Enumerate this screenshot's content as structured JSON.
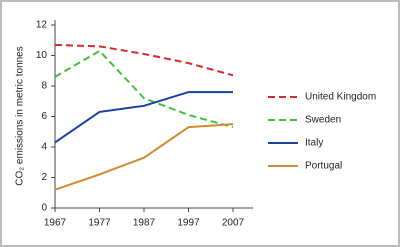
{
  "chart_data": {
    "type": "line",
    "y_label": "CO₂ emissions in metric tonnes",
    "x": [
      1967,
      1977,
      1987,
      1997,
      2007
    ],
    "xlim": [
      1967,
      2007
    ],
    "xticks": [
      1967,
      1977,
      1987,
      1997,
      2007
    ],
    "ylim": [
      0,
      12
    ],
    "yticks": [
      0,
      2,
      4,
      6,
      8,
      10,
      12
    ],
    "legend": "right",
    "series": [
      {
        "name": "United Kingdom",
        "color": "#d62a2a",
        "dashed": true,
        "values": [
          10.7,
          10.6,
          10.1,
          9.5,
          8.7
        ]
      },
      {
        "name": "Sweden",
        "color": "#3fc23a",
        "dashed": true,
        "values": [
          8.6,
          10.3,
          7.2,
          6.1,
          5.3
        ]
      },
      {
        "name": "Italy",
        "color": "#1c3fa0",
        "dashed": false,
        "values": [
          4.3,
          6.3,
          6.7,
          7.6,
          7.6
        ]
      },
      {
        "name": "Portugal",
        "color": "#d08a30",
        "dashed": false,
        "values": [
          1.2,
          2.2,
          3.3,
          5.3,
          5.5
        ]
      }
    ]
  }
}
